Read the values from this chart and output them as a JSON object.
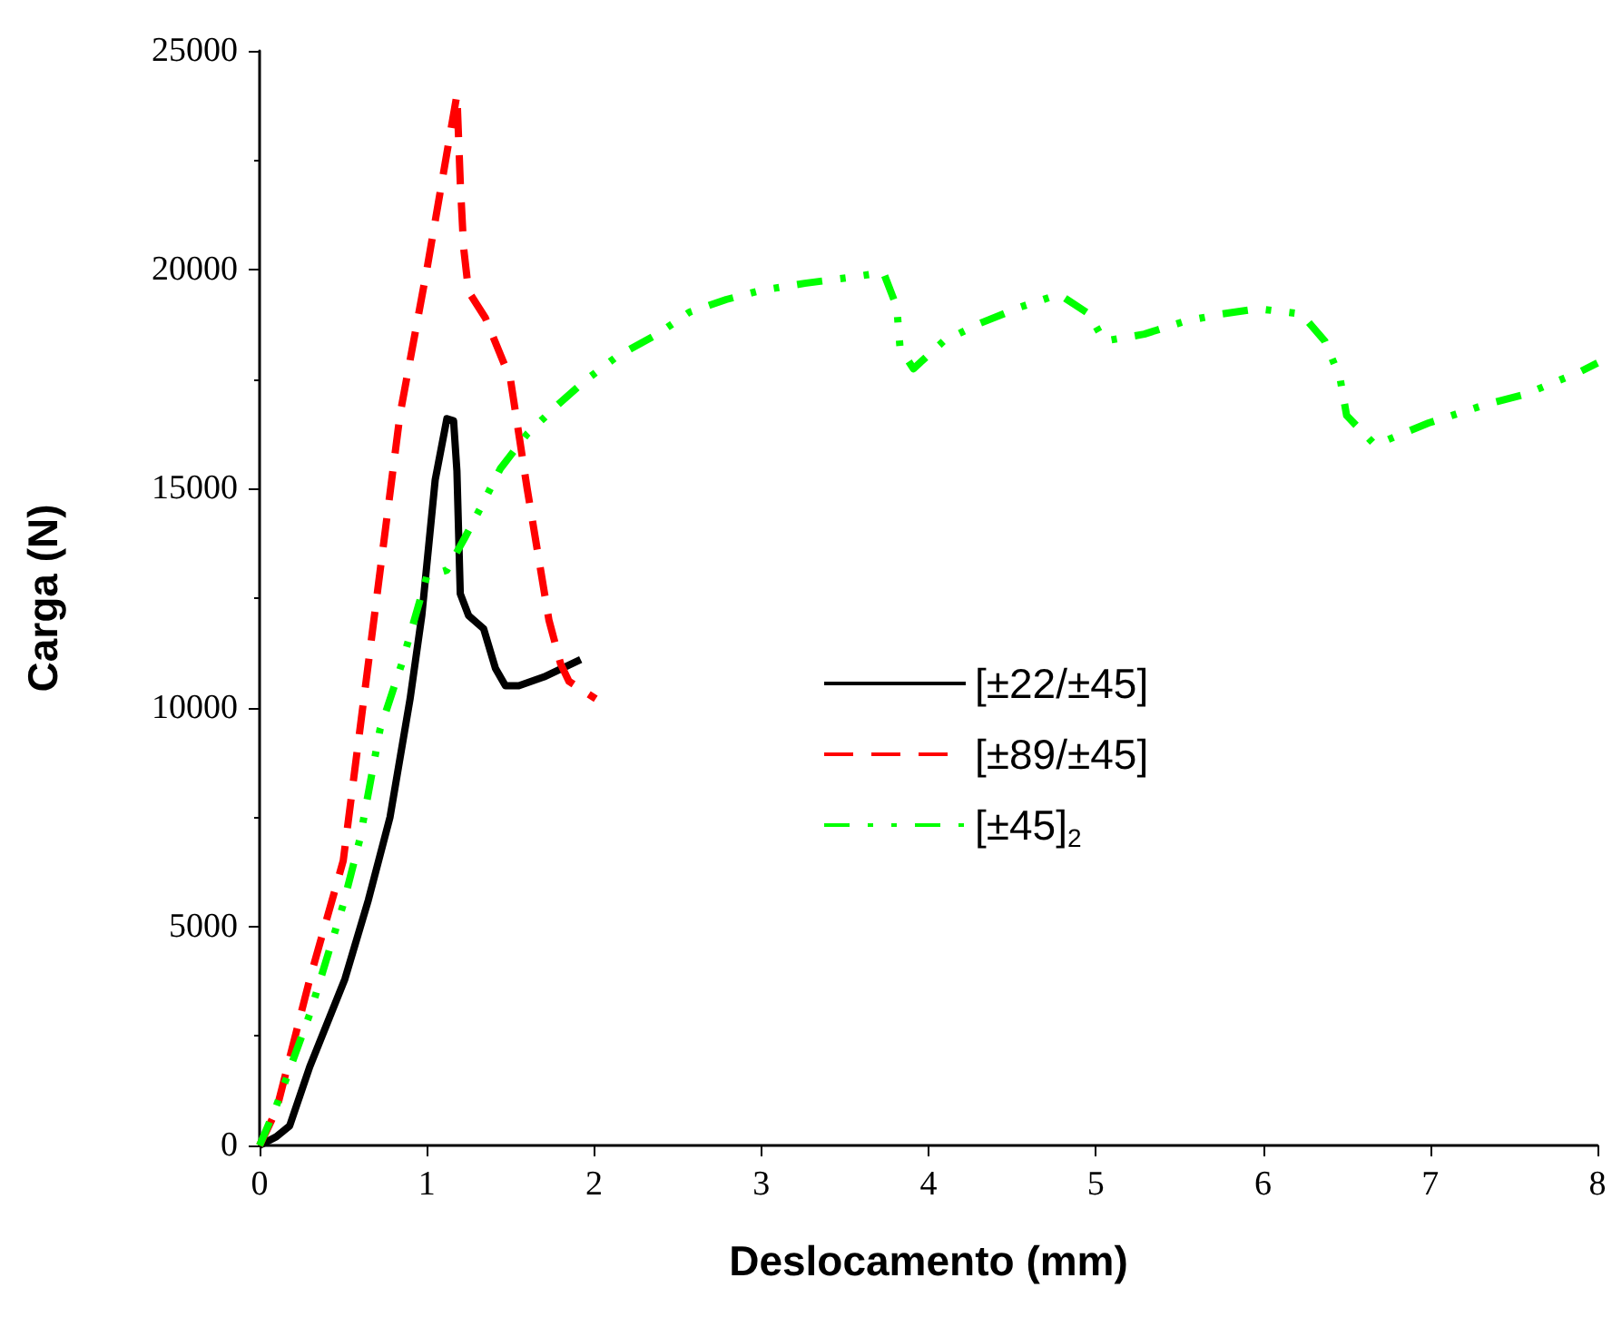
{
  "chart_data": {
    "type": "line",
    "xlabel": "Deslocamento (mm)",
    "ylabel": "Carga (N)",
    "xlim": [
      0,
      8
    ],
    "xticks": [
      0,
      1,
      2,
      3,
      4,
      5,
      6,
      7,
      8
    ],
    "ylim": [
      0,
      25000
    ],
    "yticks": [
      0,
      5000,
      10000,
      15000,
      20000,
      25000
    ],
    "grid": false,
    "legend": "right",
    "marker": "none",
    "series": [
      {
        "name": "[±22/±45]",
        "color": "#000000",
        "line_style": "solid",
        "x": [
          0,
          0.1,
          0.18,
          0.3,
          0.51,
          0.65,
          0.78,
          0.9,
          0.97,
          1.05,
          1.12,
          1.16,
          1.18,
          1.19,
          1.2,
          1.25,
          1.34,
          1.41,
          1.47,
          1.55,
          1.7,
          1.92
        ],
        "values": [
          0,
          200,
          450,
          1800,
          3800,
          5600,
          7500,
          10200,
          12100,
          15200,
          16600,
          16550,
          15400,
          14000,
          12600,
          12100,
          11800,
          10900,
          10500,
          10500,
          10700,
          11100
        ]
      },
      {
        "name": "[±89/±45]",
        "color": "#ff0000",
        "line_style": "dashed",
        "x": [
          0,
          0.1,
          0.3,
          0.5,
          0.84,
          1.0,
          1.18,
          1.2,
          1.22,
          1.25,
          1.35,
          1.5,
          1.6,
          1.73,
          1.8,
          1.85,
          2.01
        ],
        "values": [
          0,
          800,
          3800,
          6500,
          16700,
          20000,
          24000,
          22000,
          20500,
          19500,
          18900,
          17500,
          15000,
          12000,
          11000,
          10600,
          10200
        ]
      },
      {
        "name": "[±45]$_{2}$",
        "color": "#00ff00",
        "line_style": "dotted",
        "x": [
          0,
          0.1,
          0.3,
          0.5,
          0.6,
          0.72,
          0.85,
          1.0,
          1.12,
          1.23,
          1.34,
          1.44,
          1.6,
          1.77,
          1.94,
          2.14,
          2.38,
          2.57,
          2.79,
          3.0,
          3.26,
          3.52,
          3.73,
          3.81,
          3.83,
          3.91,
          4.09,
          4.31,
          4.55,
          4.78,
          4.96,
          5.05,
          5.29,
          5.53,
          5.75,
          5.97,
          6.23,
          6.37,
          6.46,
          6.5,
          6.67,
          6.99,
          7.33,
          7.57,
          7.89,
          8.0
        ],
        "values": [
          0,
          900,
          3000,
          5500,
          7000,
          9500,
          11000,
          13000,
          13140,
          13900,
          14700,
          15460,
          16250,
          16870,
          17450,
          18030,
          18530,
          19030,
          19320,
          19530,
          19690,
          19820,
          19940,
          19150,
          18200,
          17740,
          18370,
          18780,
          19150,
          19440,
          18990,
          18370,
          18530,
          18820,
          18990,
          19110,
          18990,
          18370,
          17540,
          16670,
          16000,
          16500,
          16920,
          17160,
          17660,
          17870
        ]
      }
    ]
  }
}
